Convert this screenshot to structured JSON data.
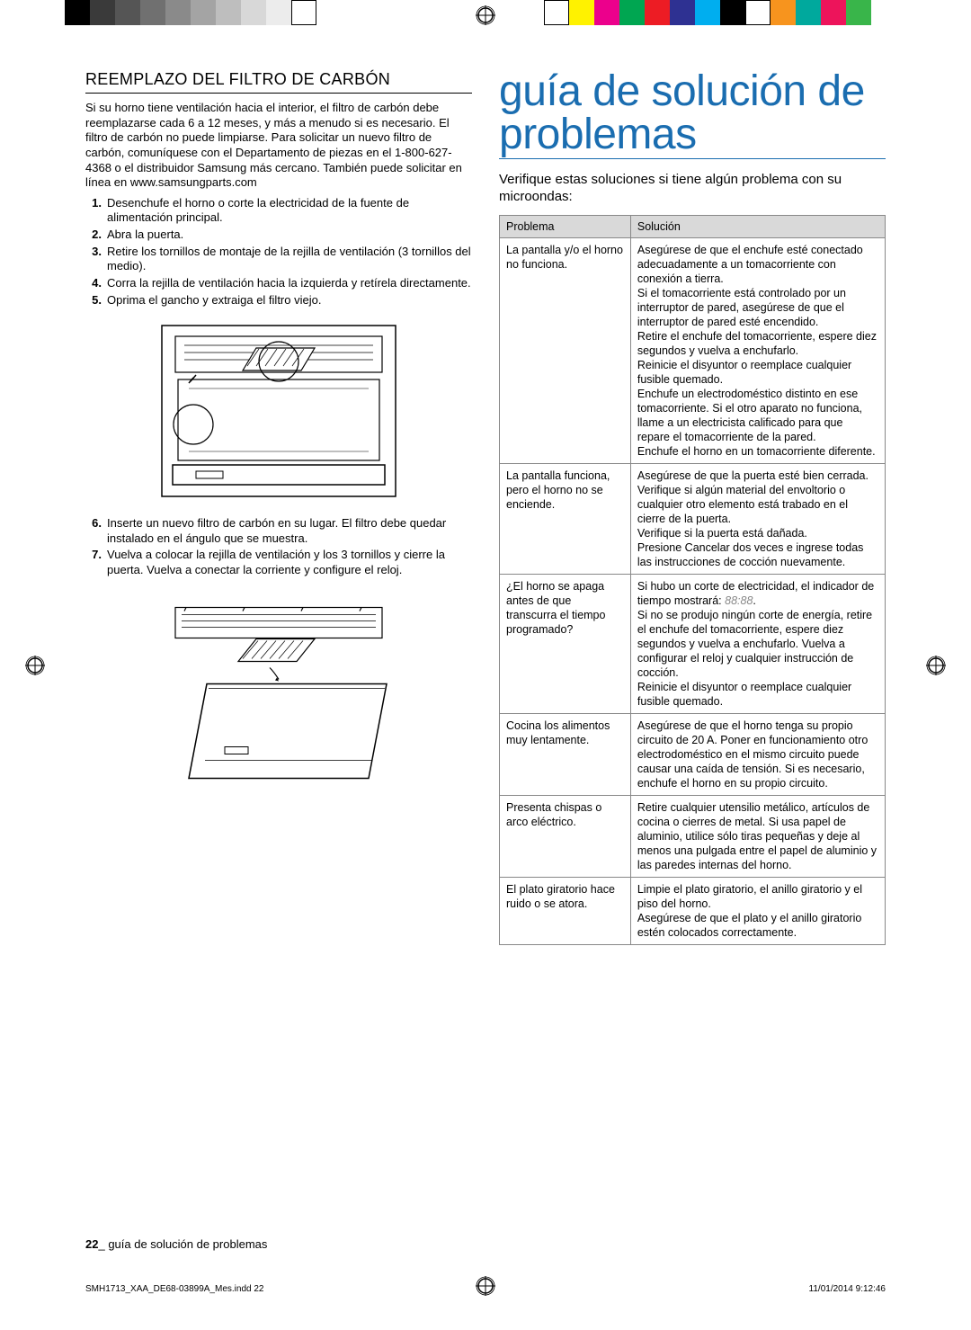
{
  "topBars": {
    "left": [
      "#000000",
      "#3a3a3a",
      "#555555",
      "#707070",
      "#8a8a8a",
      "#a4a4a4",
      "#bebebe",
      "#d8d8d8",
      "#ececec",
      "#ffffff"
    ],
    "right": [
      "#ffffff",
      "#fff200",
      "#ec008c",
      "#00a651",
      "#ed1c24",
      "#2e3192",
      "#00aeef",
      "#000000",
      "#ffffff",
      "#f7941e",
      "#00a99d",
      "#ed145b",
      "#39b54a"
    ]
  },
  "left": {
    "heading": "REEMPLAZO DEL FILTRO DE CARBÓN",
    "intro": "Si su horno tiene ventilación hacia el interior, el filtro de carbón debe reemplazarse cada 6 a 12 meses, y más a menudo si es necesario. El filtro de carbón no puede limpiarse. Para solicitar un nuevo filtro de carbón, comuníquese con el Departamento de piezas en el 1-800-627-4368 o el distribuidor Samsung más cercano. También puede solicitar en línea en www.samsungparts.com",
    "stepsA": [
      "Desenchufe el horno o corte la electricidad de la fuente de alimentación principal.",
      "Abra la puerta.",
      "Retire los tornillos de montaje de la rejilla de ventilación (3 tornillos del medio).",
      "Corra la rejilla de ventilación hacia la izquierda y retírela directamente.",
      "Oprima el gancho y extraiga el filtro viejo."
    ],
    "stepsB": [
      "Inserte un nuevo filtro de carbón en su lugar. El filtro debe quedar instalado en el ángulo que se muestra.",
      "Vuelva a colocar la rejilla de ventilación y los 3 tornillos y cierre la puerta. Vuelva a conectar la corriente y configure el reloj."
    ]
  },
  "right": {
    "title": "guía de solución de problemas",
    "sub": "Verifique estas soluciones si tiene algún problema con su microondas:",
    "colProblem": "Problema",
    "colSolution": "Solución",
    "displayCode": "88:88",
    "rows": [
      {
        "p": "La pantalla y/o el horno no funciona.",
        "s": "Asegúrese de que el enchufe esté conectado adecuadamente a un tomacorriente con conexión a tierra.\nSi el tomacorriente está controlado por un interruptor de pared, asegúrese de que el interruptor de pared esté encendido.\nRetire el enchufe del tomacorriente, espere diez segundos y vuelva a enchufarlo.\nReinicie el disyuntor o reemplace cualquier fusible quemado.\nEnchufe un electrodoméstico distinto en ese tomacorriente. Si el otro aparato no funciona, llame a un electricista calificado para que repare el tomacorriente de la pared.\nEnchufe el horno en un tomacorriente diferente."
      },
      {
        "p": "La pantalla funciona, pero el horno no se enciende.",
        "s": "Asegúrese de que la puerta esté bien cerrada.\nVerifique si algún material del envoltorio o cualquier otro elemento está trabado en el cierre de la puerta.\nVerifique si la puerta está dañada.\nPresione Cancelar dos veces e ingrese todas las instrucciones de cocción nuevamente."
      },
      {
        "p": "¿El horno se apaga antes de que transcurra el tiempo programado?",
        "s": "Si hubo un corte de electricidad, el indicador de tiempo mostrará: {CODE}.\nSi no se produjo ningún corte de energía, retire el enchufe del tomacorriente, espere diez segundos y vuelva a enchufarlo. Vuelva a configurar el reloj y cualquier instrucción de cocción.\nReinicie el disyuntor o reemplace cualquier fusible quemado."
      },
      {
        "p": "Cocina los alimentos muy lentamente.",
        "s": "Asegúrese de que el horno tenga su propio circuito de 20 A. Poner en funcionamiento otro electrodoméstico en el mismo circuito puede causar una caída de tensión. Si es necesario, enchufe el horno en su propio circuito."
      },
      {
        "p": "Presenta chispas o arco eléctrico.",
        "s": "Retire cualquier utensilio metálico, artículos de cocina o cierres de metal. Si usa papel de aluminio, utilice sólo tiras pequeñas y deje al menos una pulgada entre el papel de aluminio y las paredes internas del horno."
      },
      {
        "p": "El plato giratorio hace ruido o se atora.",
        "s": "Limpie el plato giratorio, el anillo giratorio y el piso del horno.\nAsegúrese de que el plato y el anillo giratorio estén colocados correctamente."
      }
    ]
  },
  "footer": {
    "pageNum": "22",
    "section": "guía de solución de problemas"
  },
  "meta": {
    "file": "SMH1713_XAA_DE68-03899A_Mes.indd   22",
    "date": "11/01/2014   9:12:46"
  }
}
